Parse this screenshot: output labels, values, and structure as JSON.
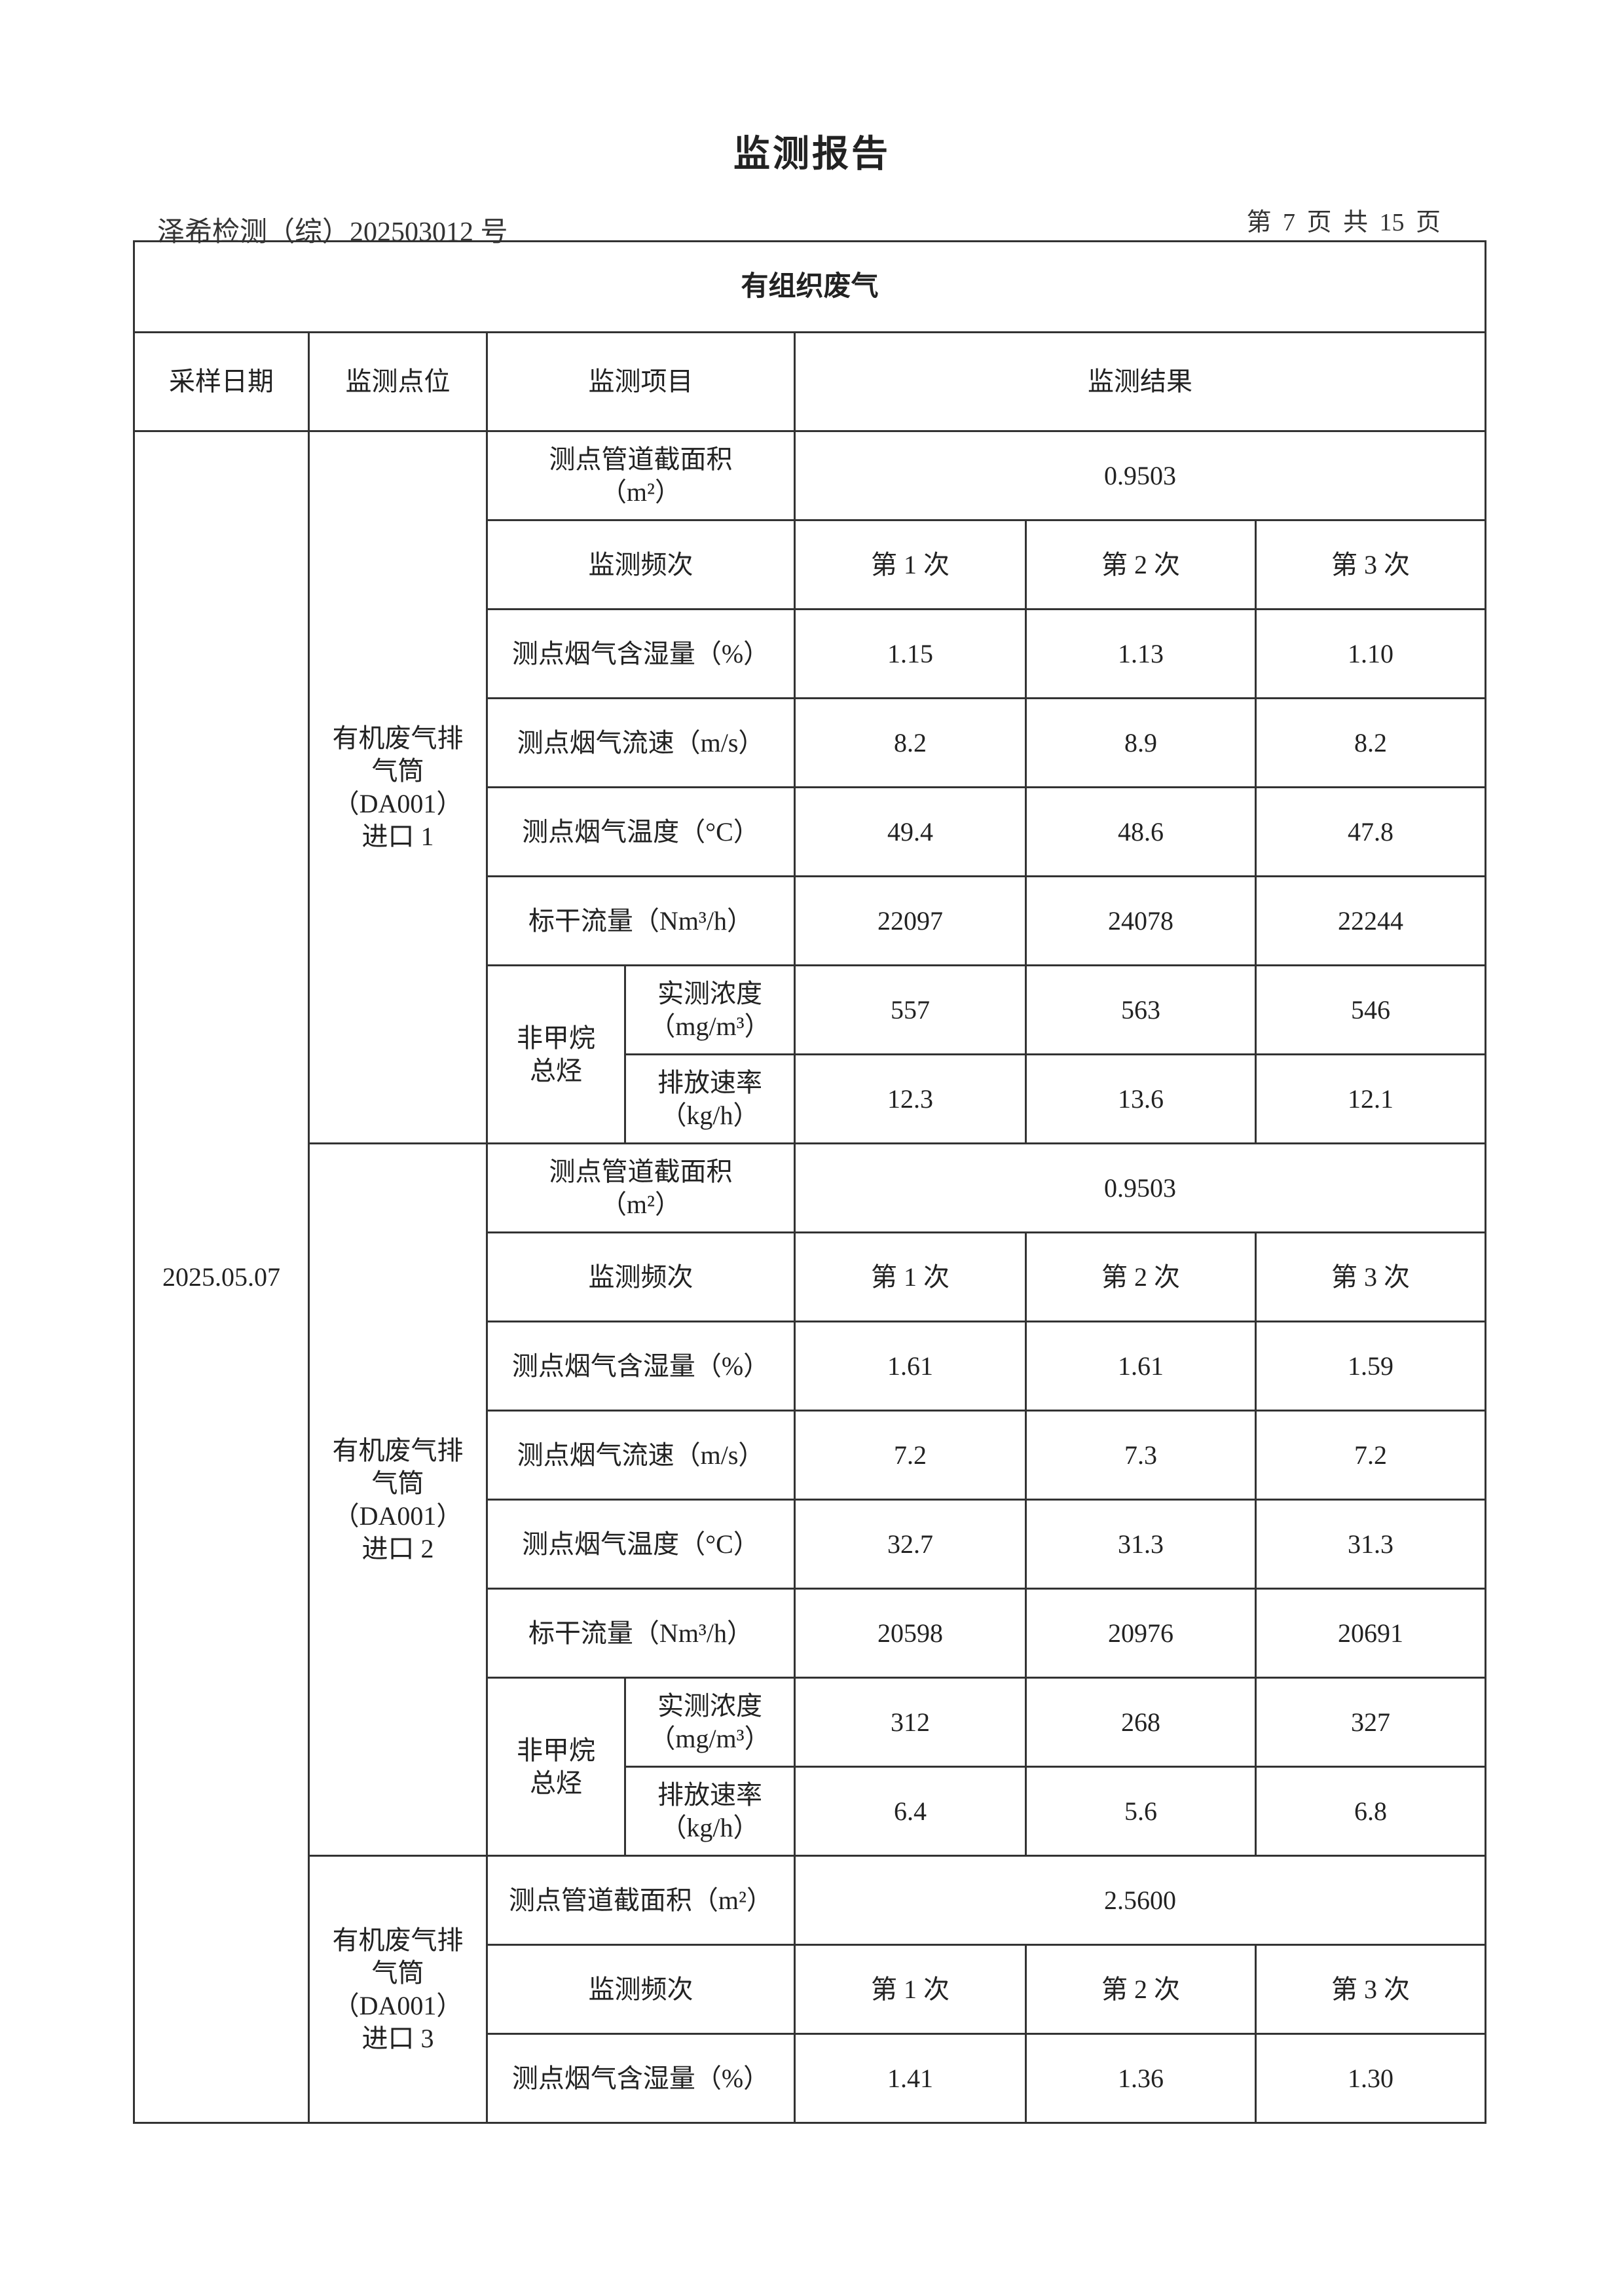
{
  "header": {
    "title": "监测报告",
    "report_no": "泽希检测（综）202503012 号",
    "page_info": "第 7 页 共 15 页"
  },
  "table": {
    "section_title": "有组织废气",
    "columns": [
      "采样日期",
      "监测点位",
      "监测项目",
      "监测结果"
    ],
    "date": "2025.05.07",
    "sections": [
      {
        "location": "有机废气排\n气筒\n（DA001）\n进口 1",
        "area_label": "测点管道截面积\n（m²）",
        "area_value": "0.9503",
        "frequency_label": "监测频次",
        "rounds": [
          "第 1 次",
          "第 2 次",
          "第 3 次"
        ],
        "rows": [
          {
            "label": "测点烟气含湿量（%）",
            "values": [
              "1.15",
              "1.13",
              "1.10"
            ]
          },
          {
            "label": "测点烟气流速（m/s）",
            "values": [
              "8.2",
              "8.9",
              "8.2"
            ]
          },
          {
            "label": "测点烟气温度（°C）",
            "values": [
              "49.4",
              "48.6",
              "47.8"
            ]
          },
          {
            "label": "标干流量（Nm³/h）",
            "values": [
              "22097",
              "24078",
              "22244"
            ]
          }
        ],
        "nmhc": {
          "label": "非甲烷\n总烃",
          "sub": [
            {
              "label": "实测浓度\n（mg/m³）",
              "values": [
                "557",
                "563",
                "546"
              ]
            },
            {
              "label": "排放速率\n（kg/h）",
              "values": [
                "12.3",
                "13.6",
                "12.1"
              ]
            }
          ]
        }
      },
      {
        "location": "有机废气排\n气筒\n（DA001）\n进口 2",
        "area_label": "测点管道截面积\n（m²）",
        "area_value": "0.9503",
        "frequency_label": "监测频次",
        "rounds": [
          "第 1 次",
          "第 2 次",
          "第 3 次"
        ],
        "rows": [
          {
            "label": "测点烟气含湿量（%）",
            "values": [
              "1.61",
              "1.61",
              "1.59"
            ]
          },
          {
            "label": "测点烟气流速（m/s）",
            "values": [
              "7.2",
              "7.3",
              "7.2"
            ]
          },
          {
            "label": "测点烟气温度（°C）",
            "values": [
              "32.7",
              "31.3",
              "31.3"
            ]
          },
          {
            "label": "标干流量（Nm³/h）",
            "values": [
              "20598",
              "20976",
              "20691"
            ]
          }
        ],
        "nmhc": {
          "label": "非甲烷\n总烃",
          "sub": [
            {
              "label": "实测浓度\n（mg/m³）",
              "values": [
                "312",
                "268",
                "327"
              ]
            },
            {
              "label": "排放速率\n（kg/h）",
              "values": [
                "6.4",
                "5.6",
                "6.8"
              ]
            }
          ]
        }
      },
      {
        "location": "有机废气排\n气筒\n（DA001）\n进口 3",
        "area_label": "测点管道截面积（m²）",
        "area_value": "2.5600",
        "frequency_label": "监测频次",
        "rounds": [
          "第 1 次",
          "第 2 次",
          "第 3 次"
        ],
        "rows": [
          {
            "label": "测点烟气含湿量（%）",
            "values": [
              "1.41",
              "1.36",
              "1.30"
            ]
          }
        ]
      }
    ]
  }
}
